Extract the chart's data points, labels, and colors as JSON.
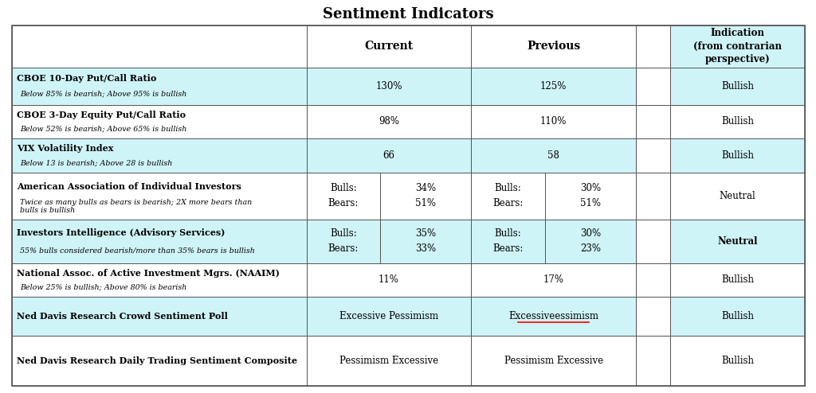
{
  "title": "Sentiment Indicators",
  "bg_color": "#ffffff",
  "teal_bg": "#cff4f8",
  "white_bg": "#ffffff",
  "header_teal": "#cff4f8",
  "border_color": "#555555",
  "rows": [
    {
      "indicator_bold": "CBOE 10-Day Put/Call Ratio",
      "indicator_italic": "Below 85% is bearish; Above 95% is bullish",
      "current_value": "130%",
      "previous_value": "125%",
      "indication": "Bullish",
      "indication_bold": false,
      "teal": true,
      "split": false
    },
    {
      "indicator_bold": "CBOE 3-Day Equity Put/Call Ratio",
      "indicator_italic": "Below 52% is bearish; Above 65% is bullish",
      "current_value": "98%",
      "previous_value": "110%",
      "indication": "Bullish",
      "indication_bold": false,
      "teal": false,
      "split": false
    },
    {
      "indicator_bold": "VIX Volatility Index",
      "indicator_italic": "Below 13 is bearish; Above 28 is bullish",
      "current_value": "66",
      "previous_value": "58",
      "indication": "Bullish",
      "indication_bold": false,
      "teal": true,
      "split": false
    },
    {
      "indicator_bold": "American Association of Individual Investors",
      "indicator_italic": "Twice as many bulls as bears is bearish; 2X more bears than\nbulls is bullish",
      "current_label": "Bulls:",
      "current_label2": "Bears:",
      "current_value": "34%",
      "current_value2": "51%",
      "previous_label": "Bulls:",
      "previous_label2": "Bears:",
      "previous_value": "30%",
      "previous_value2": "51%",
      "indication": "Neutral",
      "indication_bold": false,
      "teal": false,
      "split": true
    },
    {
      "indicator_bold": "Investors Intelligence (Advisory Services)",
      "indicator_italic": "55% bulls considered bearish/more than 35% bears is bullish",
      "current_label": "Bulls:",
      "current_label2": "Bears:",
      "current_value": "35%",
      "current_value2": "33%",
      "previous_label": "Bulls:",
      "previous_label2": "Bears:",
      "previous_value": "30%",
      "previous_value2": "23%",
      "indication": "Neutral",
      "indication_bold": true,
      "teal": true,
      "split": true
    },
    {
      "indicator_bold": "National Assoc. of Active Investment Mgrs. (NAAIM)",
      "indicator_italic": "Below 25% is bullish; Above 80% is bearish",
      "current_value": "11%",
      "previous_value": "17%",
      "indication": "Bullish",
      "indication_bold": false,
      "teal": false,
      "split": false
    },
    {
      "indicator_bold": "Ned Davis Research Crowd Sentiment Poll",
      "indicator_italic": "",
      "current_value": "Excessive Pessimism",
      "previous_value": "Excessiveessimism",
      "previous_underline": true,
      "indication": "Bullish",
      "indication_bold": false,
      "teal": true,
      "split": false
    },
    {
      "indicator_bold": "Ned Davis Research Daily Trading Sentiment Composite",
      "indicator_italic": "",
      "current_value": "Pessimism Excessive",
      "previous_value": "Pessimism Excessive",
      "previous_underline": false,
      "indication": "Bullish",
      "indication_bold": false,
      "teal": false,
      "split": false
    }
  ]
}
